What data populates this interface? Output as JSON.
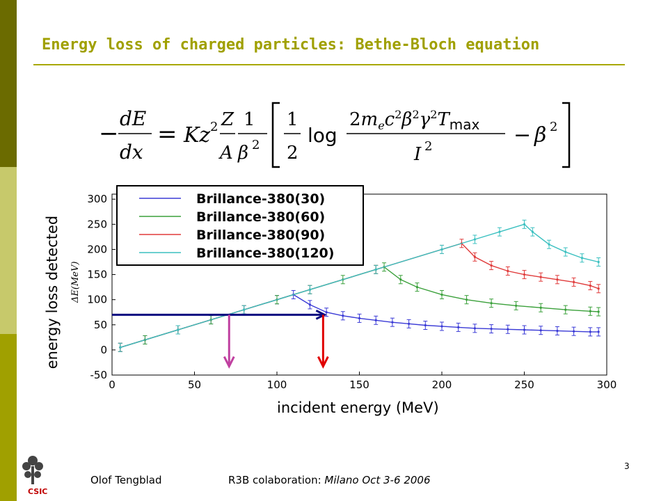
{
  "slide": {
    "title": "Energy loss of charged particles: Bethe-Bloch equation",
    "ylabel_main": "energy loss detected",
    "xlabel_main": "incident energy   (MeV)",
    "footer_author": "Olof Tengblad",
    "footer_conference": "R3B colaboration: ",
    "footer_venue": "Milano  Oct 3-6  2006",
    "page_number": "3",
    "logo_text": "CSIC"
  },
  "colors": {
    "sidebar_dark": "#6b6b00",
    "sidebar_light": "#c7c96b",
    "sidebar_mid": "#a0a000",
    "title": "#a0a000",
    "arrow_navy": "#0a0a80",
    "arrow_magenta": "#c040a0",
    "arrow_red": "#e00000"
  },
  "chart_data": {
    "type": "line",
    "xlabel": "",
    "ylabel": "ΔE(MeV)",
    "xlim": [
      0,
      300
    ],
    "ylim": [
      -50,
      310
    ],
    "xticks": [
      "0",
      "50",
      "100",
      "150",
      "200",
      "250",
      "300"
    ],
    "yticks": [
      "-50",
      "0",
      "50",
      "100",
      "150",
      "200",
      "250",
      "300"
    ],
    "legend_position": "top-left",
    "series": [
      {
        "name": "Brillance-380(30)",
        "color": "#3a3ad6",
        "x": [
          5,
          20,
          40,
          60,
          80,
          100,
          110,
          120,
          130,
          140,
          150,
          160,
          170,
          180,
          190,
          200,
          210,
          220,
          230,
          240,
          250,
          260,
          270,
          280,
          290,
          295
        ],
        "y": [
          5,
          20,
          40,
          60,
          80,
          100,
          110,
          90,
          75,
          68,
          63,
          59,
          55,
          52,
          49,
          47,
          45,
          43,
          42,
          41,
          40,
          39,
          38,
          37,
          36,
          36
        ]
      },
      {
        "name": "Brillance-380(60)",
        "color": "#3aa03a",
        "x": [
          5,
          20,
          40,
          60,
          80,
          100,
          120,
          140,
          160,
          165,
          175,
          185,
          200,
          215,
          230,
          245,
          260,
          275,
          290,
          295
        ],
        "y": [
          5,
          20,
          40,
          60,
          80,
          100,
          120,
          140,
          160,
          165,
          140,
          125,
          110,
          100,
          93,
          88,
          84,
          80,
          77,
          76
        ]
      },
      {
        "name": "Brillance-380(90)",
        "color": "#e03a3a",
        "x": [
          5,
          40,
          80,
          120,
          160,
          200,
          212,
          220,
          230,
          240,
          250,
          260,
          270,
          280,
          290,
          295
        ],
        "y": [
          5,
          40,
          80,
          120,
          160,
          200,
          212,
          185,
          168,
          157,
          150,
          145,
          140,
          135,
          128,
          122
        ]
      },
      {
        "name": "Brillance-380(120)",
        "color": "#3ac0c0",
        "x": [
          5,
          40,
          80,
          120,
          160,
          200,
          220,
          235,
          250,
          255,
          265,
          275,
          285,
          295
        ],
        "y": [
          5,
          40,
          80,
          120,
          160,
          200,
          220,
          235,
          250,
          235,
          210,
          195,
          183,
          175
        ]
      }
    ],
    "annotations": [
      {
        "type": "arrow",
        "from": [
          0,
          70
        ],
        "to": [
          128,
          70
        ],
        "color": "navy"
      },
      {
        "type": "arrow",
        "from": [
          71,
          70
        ],
        "to": [
          71,
          -30
        ],
        "color": "magenta"
      },
      {
        "type": "arrow",
        "from": [
          128,
          70
        ],
        "to": [
          128,
          -30
        ],
        "color": "red"
      }
    ]
  }
}
